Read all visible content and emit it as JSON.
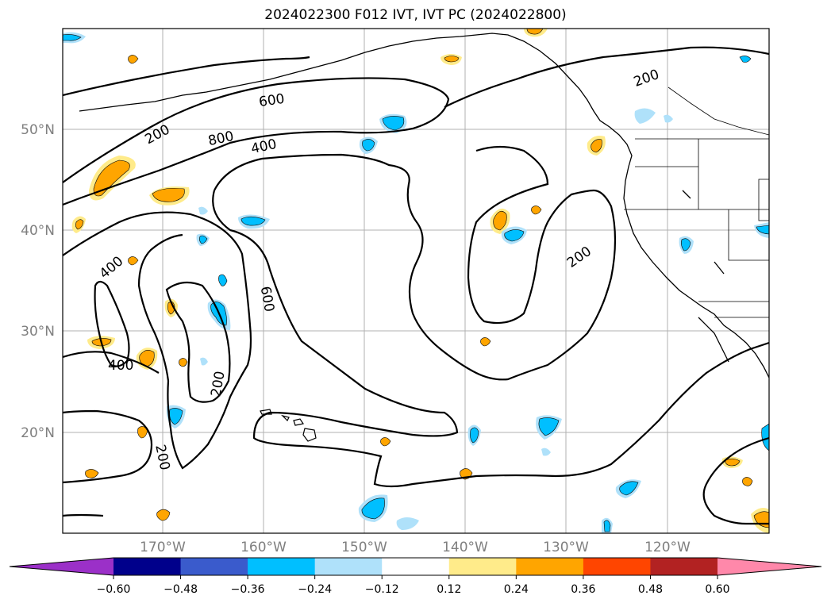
{
  "title": "2024022300 F012 IVT, IVT PC (2024022800)",
  "map": {
    "lat_labels": [
      "20°N",
      "30°N",
      "40°N",
      "50°N"
    ],
    "lon_labels": [
      "170°W",
      "160°W",
      "150°W",
      "140°W",
      "130°W",
      "120°W"
    ],
    "contour_labels": [
      "200",
      "600",
      "800",
      "400",
      "200",
      "200",
      "400",
      "400",
      "600",
      "200"
    ],
    "contour_levels": [
      200,
      400,
      600,
      800
    ]
  },
  "colorbar": {
    "ticks": [
      "−0.60",
      "−0.48",
      "−0.36",
      "−0.24",
      "−0.12",
      "0.12",
      "0.24",
      "0.36",
      "0.48",
      "0.60"
    ],
    "colors": [
      "#9b30c8",
      "#00008b",
      "#3a5bcc",
      "#00bfff",
      "#afe1fa",
      "#ffffff",
      "#ffeb8a",
      "#ffa500",
      "#ff4500",
      "#b22222",
      "#ff88aa"
    ]
  }
}
